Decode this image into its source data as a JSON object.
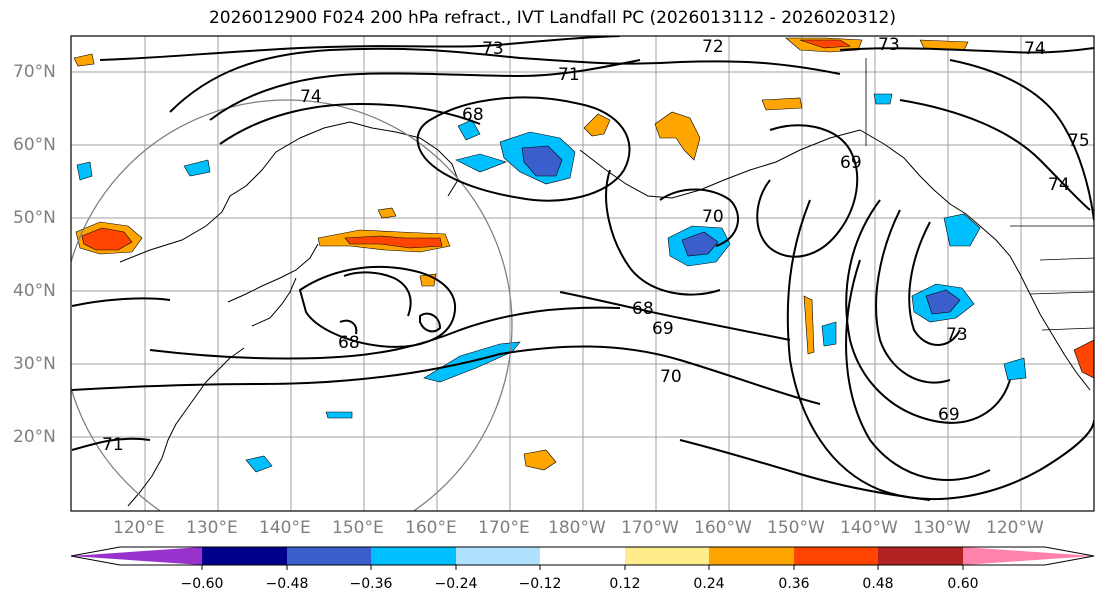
{
  "title": "2026012900 F024 200 hPa refract., IVT Landfall PC (2026013112 - 2026020312)",
  "latitude_labels": [
    "70°N",
    "60°N",
    "50°N",
    "40°N",
    "30°N",
    "20°N"
  ],
  "longitude_labels": [
    "120°E",
    "130°E",
    "140°E",
    "150°E",
    "160°E",
    "170°E",
    "180°W",
    "170°W",
    "160°W",
    "150°W",
    "140°W",
    "130°W",
    "120°W"
  ],
  "contour_labels": [
    "73",
    "72",
    "71",
    "74",
    "68",
    "73",
    "74",
    "69",
    "70",
    "68",
    "68",
    "69",
    "70",
    "73",
    "69",
    "71",
    "75",
    "74"
  ],
  "colorbar": {
    "colors": [
      "#9932cc",
      "#00008b",
      "#3a5fcd",
      "#00bfff",
      "#b0e2ff",
      "#ffffff",
      "#ffec8b",
      "#ffa500",
      "#ff4500",
      "#b22222",
      "#ff82ab"
    ],
    "tick_labels": [
      "−0.60",
      "−0.48",
      "−0.36",
      "−0.24",
      "−0.12",
      "0.12",
      "0.24",
      "0.36",
      "0.48",
      "0.60"
    ]
  },
  "fill_colors": {
    "neg_light": "#00bfff",
    "neg_mid": "#3a5fcd",
    "pos_light": "#ffec8b",
    "pos_mid": "#ffa500",
    "pos_strong": "#ff4500"
  }
}
